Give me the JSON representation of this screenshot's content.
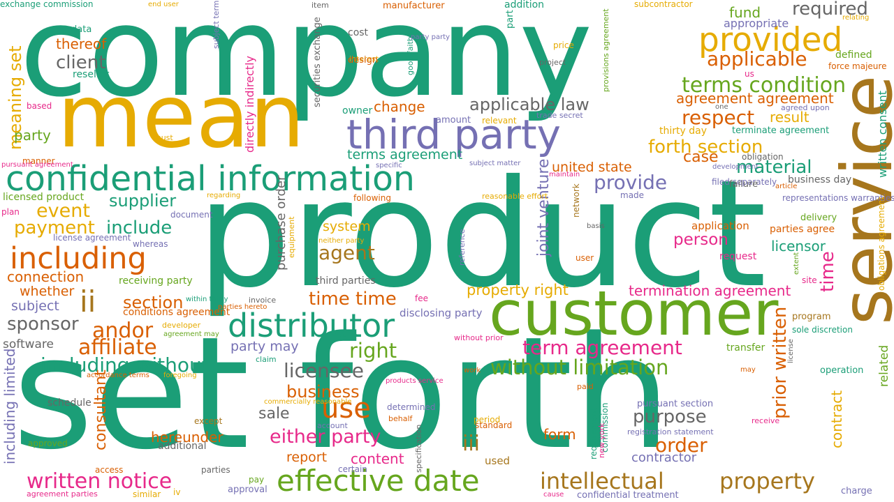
{
  "palette": {
    "teal": "#1b9e77",
    "orange": "#d95f02",
    "purple": "#7570b3",
    "pink": "#e7298a",
    "green": "#66a61e",
    "gold": "#e6ab02",
    "brown": "#a6761d",
    "gray": "#666666"
  },
  "words": [
    {
      "text": "company",
      "color": "teal"
    },
    {
      "text": "product",
      "color": "teal"
    },
    {
      "text": "set forth",
      "color": "teal"
    },
    {
      "text": "mean",
      "color": "gold"
    },
    {
      "text": "service",
      "color": "brown"
    },
    {
      "text": "customer",
      "color": "green"
    },
    {
      "text": "third party",
      "color": "purple"
    },
    {
      "text": "confidential information",
      "color": "teal"
    },
    {
      "text": "distributor",
      "color": "teal"
    },
    {
      "text": "effective date",
      "color": "green"
    },
    {
      "text": "provided",
      "color": "gold"
    },
    {
      "text": "intellectual",
      "color": "brown"
    },
    {
      "text": "property",
      "color": "brown"
    },
    {
      "text": "including",
      "color": "orange"
    },
    {
      "text": "terms condition",
      "color": "green"
    },
    {
      "text": "applicable",
      "color": "orange"
    },
    {
      "text": "use",
      "color": "orange"
    },
    {
      "text": "required",
      "color": "gray"
    },
    {
      "text": "applicable law",
      "color": "gray"
    },
    {
      "text": "forth section",
      "color": "gold"
    },
    {
      "text": "respect",
      "color": "orange"
    },
    {
      "text": "ii",
      "color": "brown"
    },
    {
      "text": "material",
      "color": "teal"
    },
    {
      "text": "written notice",
      "color": "pink"
    },
    {
      "text": "term agreement",
      "color": "pink"
    },
    {
      "text": "without limitation",
      "color": "green"
    },
    {
      "text": "either party",
      "color": "pink"
    },
    {
      "text": "prior written",
      "color": "orange"
    },
    {
      "text": "written consent",
      "color": "teal"
    },
    {
      "text": "affiliate",
      "color": "orange"
    },
    {
      "text": "andor",
      "color": "orange"
    },
    {
      "text": "including without",
      "color": "teal"
    },
    {
      "text": "provide",
      "color": "purple"
    },
    {
      "text": "licensee",
      "color": "gray"
    },
    {
      "text": "agent",
      "color": "brown"
    },
    {
      "text": "time time",
      "color": "orange"
    },
    {
      "text": "right",
      "color": "green"
    },
    {
      "text": "time",
      "color": "pink"
    },
    {
      "text": "contract",
      "color": "gold"
    },
    {
      "text": "agreement agreement",
      "color": "orange"
    },
    {
      "text": "event",
      "color": "gold"
    },
    {
      "text": "payment",
      "color": "gold"
    },
    {
      "text": "include",
      "color": "teal"
    },
    {
      "text": "supplier",
      "color": "teal"
    },
    {
      "text": "section",
      "color": "orange"
    },
    {
      "text": "sponsor",
      "color": "gray"
    },
    {
      "text": "meaning set",
      "color": "gold"
    },
    {
      "text": "order",
      "color": "orange"
    },
    {
      "text": "purpose",
      "color": "gray"
    },
    {
      "text": "business",
      "color": "orange"
    },
    {
      "text": "iii",
      "color": "brown"
    },
    {
      "text": "case",
      "color": "orange"
    },
    {
      "text": "client",
      "color": "gray"
    },
    {
      "text": "joint venture",
      "color": "purple"
    },
    {
      "text": "person",
      "color": "pink"
    },
    {
      "text": "licensor",
      "color": "teal"
    },
    {
      "text": "result",
      "color": "gold"
    },
    {
      "text": "thereof",
      "color": "orange"
    },
    {
      "text": "united state",
      "color": "orange"
    },
    {
      "text": "property right",
      "color": "gold"
    },
    {
      "text": "termination agreement",
      "color": "pink"
    },
    {
      "text": "purchase order",
      "color": "gray"
    },
    {
      "text": "directly indirectly",
      "color": "pink"
    },
    {
      "text": "consultant",
      "color": "orange"
    },
    {
      "text": "connection",
      "color": "orange"
    },
    {
      "text": "hereunder",
      "color": "orange"
    },
    {
      "text": "whether",
      "color": "orange"
    },
    {
      "text": "subject",
      "color": "purple"
    },
    {
      "text": "including limited",
      "color": "purple"
    },
    {
      "text": "party may",
      "color": "purple"
    },
    {
      "text": "report",
      "color": "orange"
    },
    {
      "text": "content",
      "color": "pink"
    },
    {
      "text": "contractor",
      "color": "purple"
    },
    {
      "text": "related",
      "color": "green"
    },
    {
      "text": "fund",
      "color": "green"
    },
    {
      "text": "sale",
      "color": "gray"
    },
    {
      "text": "change",
      "color": "orange"
    },
    {
      "text": "system",
      "color": "gold"
    },
    {
      "text": "terms agreement",
      "color": "teal"
    },
    {
      "text": "party",
      "color": "green"
    },
    {
      "text": "form",
      "color": "orange"
    },
    {
      "text": "appropriate",
      "color": "purple"
    },
    {
      "text": "software",
      "color": "gray"
    },
    {
      "text": "disclosing party",
      "color": "purple"
    },
    {
      "text": "receiving party",
      "color": "green"
    },
    {
      "text": "third parties",
      "color": "gray"
    },
    {
      "text": "securities exchange",
      "color": "gray"
    },
    {
      "text": "business day",
      "color": "gray"
    },
    {
      "text": "terminate agreement",
      "color": "teal"
    },
    {
      "text": "thirty day",
      "color": "gold"
    },
    {
      "text": "parties agree",
      "color": "orange"
    },
    {
      "text": "application",
      "color": "orange"
    },
    {
      "text": "delivery",
      "color": "green"
    },
    {
      "text": "request",
      "color": "pink"
    },
    {
      "text": "schedule",
      "color": "gray"
    },
    {
      "text": "additional",
      "color": "gray"
    },
    {
      "text": "reseller",
      "color": "teal"
    },
    {
      "text": "data",
      "color": "teal"
    },
    {
      "text": "cost",
      "color": "gray"
    },
    {
      "text": "owner",
      "color": "teal"
    },
    {
      "text": "network",
      "color": "brown"
    },
    {
      "text": "defined",
      "color": "green"
    },
    {
      "text": "force majeure",
      "color": "orange"
    },
    {
      "text": "program",
      "color": "brown"
    },
    {
      "text": "transfer",
      "color": "green"
    },
    {
      "text": "operation",
      "color": "teal"
    },
    {
      "text": "pursuant section",
      "color": "purple"
    },
    {
      "text": "commission",
      "color": "teal"
    },
    {
      "text": "requirement",
      "color": "teal"
    },
    {
      "text": "approval",
      "color": "purple"
    },
    {
      "text": "certain",
      "color": "purple"
    },
    {
      "text": "used",
      "color": "brown"
    },
    {
      "text": "document",
      "color": "purple"
    },
    {
      "text": "licensed product",
      "color": "green"
    },
    {
      "text": "plan",
      "color": "pink"
    },
    {
      "text": "manner",
      "color": "orange"
    },
    {
      "text": "based",
      "color": "pink"
    },
    {
      "text": "must",
      "color": "gold"
    },
    {
      "text": "sole discretion",
      "color": "teal"
    },
    {
      "text": "charge",
      "color": "purple"
    },
    {
      "text": "approved",
      "color": "green"
    },
    {
      "text": "access",
      "color": "orange"
    },
    {
      "text": "parties",
      "color": "gray"
    },
    {
      "text": "similar",
      "color": "gold"
    },
    {
      "text": "pay",
      "color": "green"
    },
    {
      "text": "iv",
      "color": "gold"
    },
    {
      "text": "agreement parties",
      "color": "pink"
    },
    {
      "text": "confidential treatment",
      "color": "purple"
    },
    {
      "text": "registration statement",
      "color": "purple"
    },
    {
      "text": "obligations agreement",
      "color": "gold"
    },
    {
      "text": "subcontractor",
      "color": "gold"
    },
    {
      "text": "addition",
      "color": "teal"
    },
    {
      "text": "manufacturer",
      "color": "orange"
    },
    {
      "text": "item",
      "color": "gray"
    },
    {
      "text": "end user",
      "color": "gold"
    },
    {
      "text": "price",
      "color": "gold"
    },
    {
      "text": "interest",
      "color": "gold"
    },
    {
      "text": "design",
      "color": "orange"
    },
    {
      "text": "good faith",
      "color": "teal"
    },
    {
      "text": "part",
      "color": "teal"
    },
    {
      "text": "project",
      "color": "gray"
    },
    {
      "text": "amount",
      "color": "purple"
    },
    {
      "text": "relevant",
      "color": "gold"
    },
    {
      "text": "trade secret",
      "color": "purple"
    },
    {
      "text": "subject matter",
      "color": "purple"
    },
    {
      "text": "following",
      "color": "orange"
    },
    {
      "text": "reasonable effort",
      "color": "gold"
    },
    {
      "text": "specific",
      "color": "purple"
    },
    {
      "text": "maintain",
      "color": "pink"
    },
    {
      "text": "regarding",
      "color": "gold"
    },
    {
      "text": "filed separately",
      "color": "purple"
    },
    {
      "text": "failure",
      "color": "gray"
    },
    {
      "text": "made",
      "color": "purple"
    },
    {
      "text": "representations warranties",
      "color": "purple"
    },
    {
      "text": "article",
      "color": "orange"
    },
    {
      "text": "development",
      "color": "purple"
    },
    {
      "text": "obligation",
      "color": "gray"
    },
    {
      "text": "one",
      "color": "gray"
    },
    {
      "text": "agreed upon",
      "color": "purple"
    },
    {
      "text": "us",
      "color": "pink"
    },
    {
      "text": "relating",
      "color": "gold"
    },
    {
      "text": "party party",
      "color": "purple"
    },
    {
      "text": "subject term",
      "color": "purple"
    },
    {
      "text": "provisions agreement",
      "color": "green"
    },
    {
      "text": "pursuant agreement",
      "color": "pink"
    },
    {
      "text": "license agreement",
      "color": "purple"
    },
    {
      "text": "whereas",
      "color": "purple"
    },
    {
      "text": "neither party",
      "color": "gold"
    },
    {
      "text": "reference",
      "color": "purple"
    },
    {
      "text": "basis",
      "color": "gray"
    },
    {
      "text": "user",
      "color": "orange"
    },
    {
      "text": "extent",
      "color": "green"
    },
    {
      "text": "site",
      "color": "pink"
    },
    {
      "text": "fee",
      "color": "pink"
    },
    {
      "text": "equipment",
      "color": "gold"
    },
    {
      "text": "conditions agreement",
      "color": "orange"
    },
    {
      "text": "parties hereto",
      "color": "orange"
    },
    {
      "text": "within thirty",
      "color": "teal"
    },
    {
      "text": "invoice",
      "color": "gray"
    },
    {
      "text": "developer",
      "color": "gold"
    },
    {
      "text": "agreement may",
      "color": "green"
    },
    {
      "text": "without prior",
      "color": "pink"
    },
    {
      "text": "work",
      "color": "orange"
    },
    {
      "text": "claim",
      "color": "teal"
    },
    {
      "text": "accordance terms",
      "color": "orange"
    },
    {
      "text": "foregoing",
      "color": "gold"
    },
    {
      "text": "products service",
      "color": "pink"
    },
    {
      "text": "paid",
      "color": "orange"
    },
    {
      "text": "may",
      "color": "orange"
    },
    {
      "text": "license",
      "color": "gray"
    },
    {
      "text": "commercially reasonable",
      "color": "gold"
    },
    {
      "text": "determined",
      "color": "purple"
    },
    {
      "text": "behalf",
      "color": "orange"
    },
    {
      "text": "account",
      "color": "purple"
    },
    {
      "text": "specification",
      "color": "gray"
    },
    {
      "text": "standard",
      "color": "orange"
    },
    {
      "text": "period",
      "color": "gold"
    },
    {
      "text": "except",
      "color": "brown"
    },
    {
      "text": "receive",
      "color": "pink"
    },
    {
      "text": "cause",
      "color": "pink"
    },
    {
      "text": "new york",
      "color": "pink"
    },
    {
      "text": "exchange commission",
      "color": "teal"
    }
  ]
}
